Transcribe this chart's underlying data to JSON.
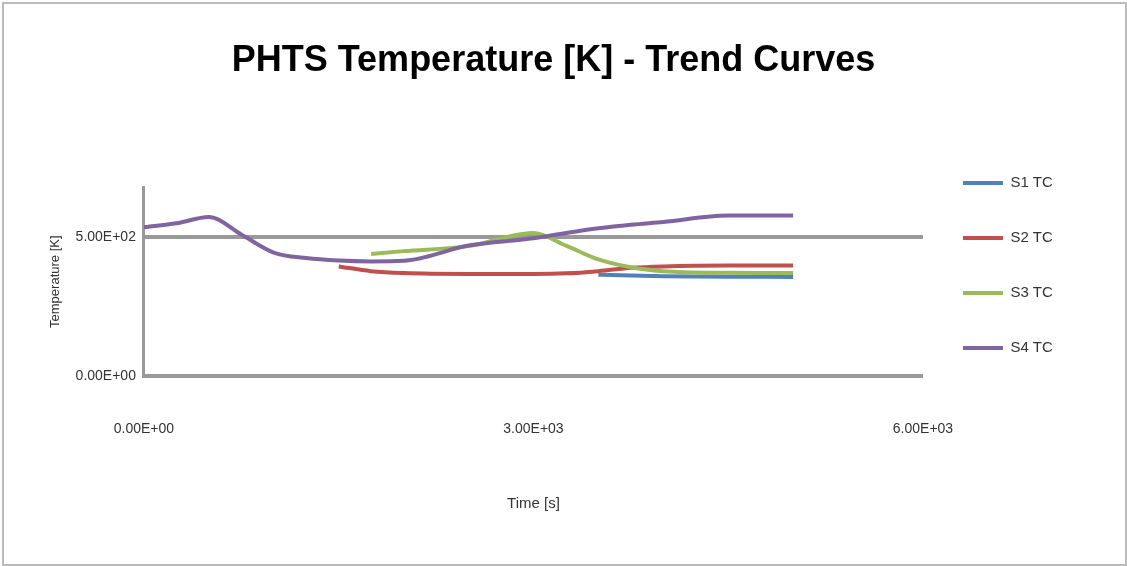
{
  "chart_data": {
    "type": "line",
    "title": "PHTS Temperature [K] - Trend Curves",
    "xlabel": "Time [s]",
    "ylabel": "Temperature [K]",
    "x": [
      0,
      250,
      500,
      750,
      1000,
      1250,
      1500,
      1750,
      2000,
      2500,
      3000,
      3250,
      3500,
      3750,
      4000,
      4500,
      5000
    ],
    "xlim": [
      0,
      6000
    ],
    "xticks": [
      {
        "value": 0,
        "label": "0.00E+00"
      },
      {
        "value": 3000,
        "label": "3.00E+03"
      },
      {
        "value": 6000,
        "label": "6.00E+03"
      }
    ],
    "ylim": [
      0,
      680
    ],
    "yticks": [
      {
        "value": 0,
        "label": "0.00E+00"
      },
      {
        "value": 500,
        "label": "5.00E+02"
      }
    ],
    "grid": "y",
    "legend": "right",
    "marker": "none",
    "line_style": "solid",
    "series": [
      {
        "name": "S1 TC",
        "color": "#4f81bd",
        "values": [
          null,
          null,
          null,
          null,
          null,
          null,
          null,
          null,
          null,
          null,
          null,
          null,
          365,
          362,
          360,
          358,
          357
        ]
      },
      {
        "name": "S2 TC",
        "color": "#c0504d",
        "values": [
          null,
          null,
          null,
          null,
          null,
          null,
          395,
          378,
          371,
          368,
          368,
          370,
          378,
          390,
          395,
          398,
          398
        ]
      },
      {
        "name": "S3 TC",
        "color": "#9bbb59",
        "values": [
          null,
          null,
          null,
          null,
          null,
          null,
          null,
          440,
          450,
          468,
          515,
          470,
          420,
          392,
          378,
          372,
          371
        ]
      },
      {
        "name": "S4 TC",
        "color": "#8064a2",
        "values": [
          536,
          550,
          573,
          510,
          445,
          425,
          416,
          413,
          415,
          470,
          496,
          515,
          532,
          545,
          555,
          578,
          578
        ]
      }
    ]
  }
}
